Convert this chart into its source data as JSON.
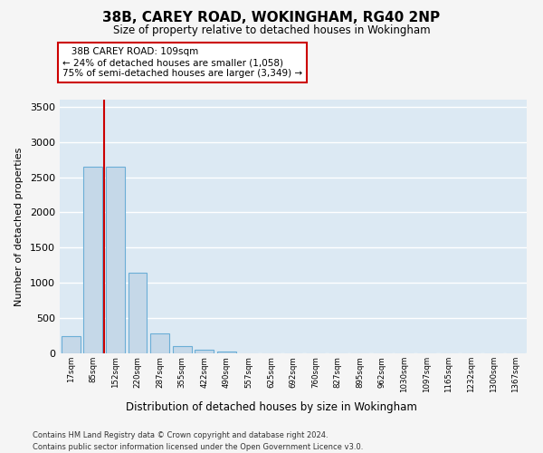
{
  "title": "38B, CAREY ROAD, WOKINGHAM, RG40 2NP",
  "subtitle": "Size of property relative to detached houses in Wokingham",
  "xlabel": "Distribution of detached houses by size in Wokingham",
  "ylabel": "Number of detached properties",
  "footer_line1": "Contains HM Land Registry data © Crown copyright and database right 2024.",
  "footer_line2": "Contains public sector information licensed under the Open Government Licence v3.0.",
  "annotation_line1": "38B CAREY ROAD: 109sqm",
  "annotation_line2": "← 24% of detached houses are smaller (1,058)",
  "annotation_line3": "75% of semi-detached houses are larger (3,349) →",
  "bar_labels": [
    "17sqm",
    "85sqm",
    "152sqm",
    "220sqm",
    "287sqm",
    "355sqm",
    "422sqm",
    "490sqm",
    "557sqm",
    "625sqm",
    "692sqm",
    "760sqm",
    "827sqm",
    "895sqm",
    "962sqm",
    "1030sqm",
    "1097sqm",
    "1165sqm",
    "1232sqm",
    "1300sqm",
    "1367sqm"
  ],
  "bar_values": [
    250,
    2650,
    2650,
    1150,
    280,
    100,
    50,
    30,
    0,
    0,
    0,
    0,
    0,
    0,
    0,
    0,
    0,
    0,
    0,
    0,
    0
  ],
  "bar_color": "#c5d8e8",
  "bar_edge_color": "#6baed6",
  "vline_color": "#cc0000",
  "ylim": [
    0,
    3600
  ],
  "yticks": [
    0,
    500,
    1000,
    1500,
    2000,
    2500,
    3000,
    3500
  ],
  "grid_color": "#ffffff",
  "plot_bg_color": "#dce9f3",
  "fig_bg_color": "#f5f5f5"
}
